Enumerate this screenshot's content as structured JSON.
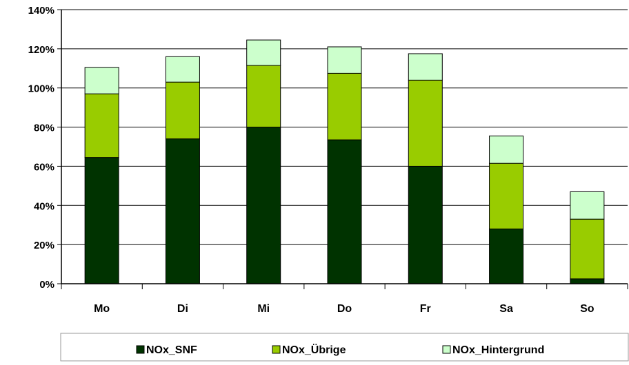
{
  "chart_data": {
    "type": "bar",
    "stacked": true,
    "categories": [
      "Mo",
      "Di",
      "Mi",
      "Do",
      "Fr",
      "Sa",
      "So"
    ],
    "series": [
      {
        "name": "NOx_SNF",
        "color": "#003300",
        "values": [
          64.5,
          74,
          80,
          73.5,
          60,
          28,
          2.5
        ]
      },
      {
        "name": "NOx_Übrige",
        "color": "#99cc00",
        "values": [
          32.5,
          29,
          31.5,
          34,
          44,
          33.5,
          30.5
        ]
      },
      {
        "name": "NOx_Hintergrund",
        "color": "#ccffcc",
        "values": [
          13.5,
          13,
          13,
          13.5,
          13.5,
          14,
          14
        ]
      }
    ],
    "yticks": [
      "0%",
      "20%",
      "40%",
      "60%",
      "80%",
      "100%",
      "120%",
      "140%"
    ],
    "ylim": [
      0,
      140
    ],
    "grid": true,
    "legend_position": "bottom"
  }
}
